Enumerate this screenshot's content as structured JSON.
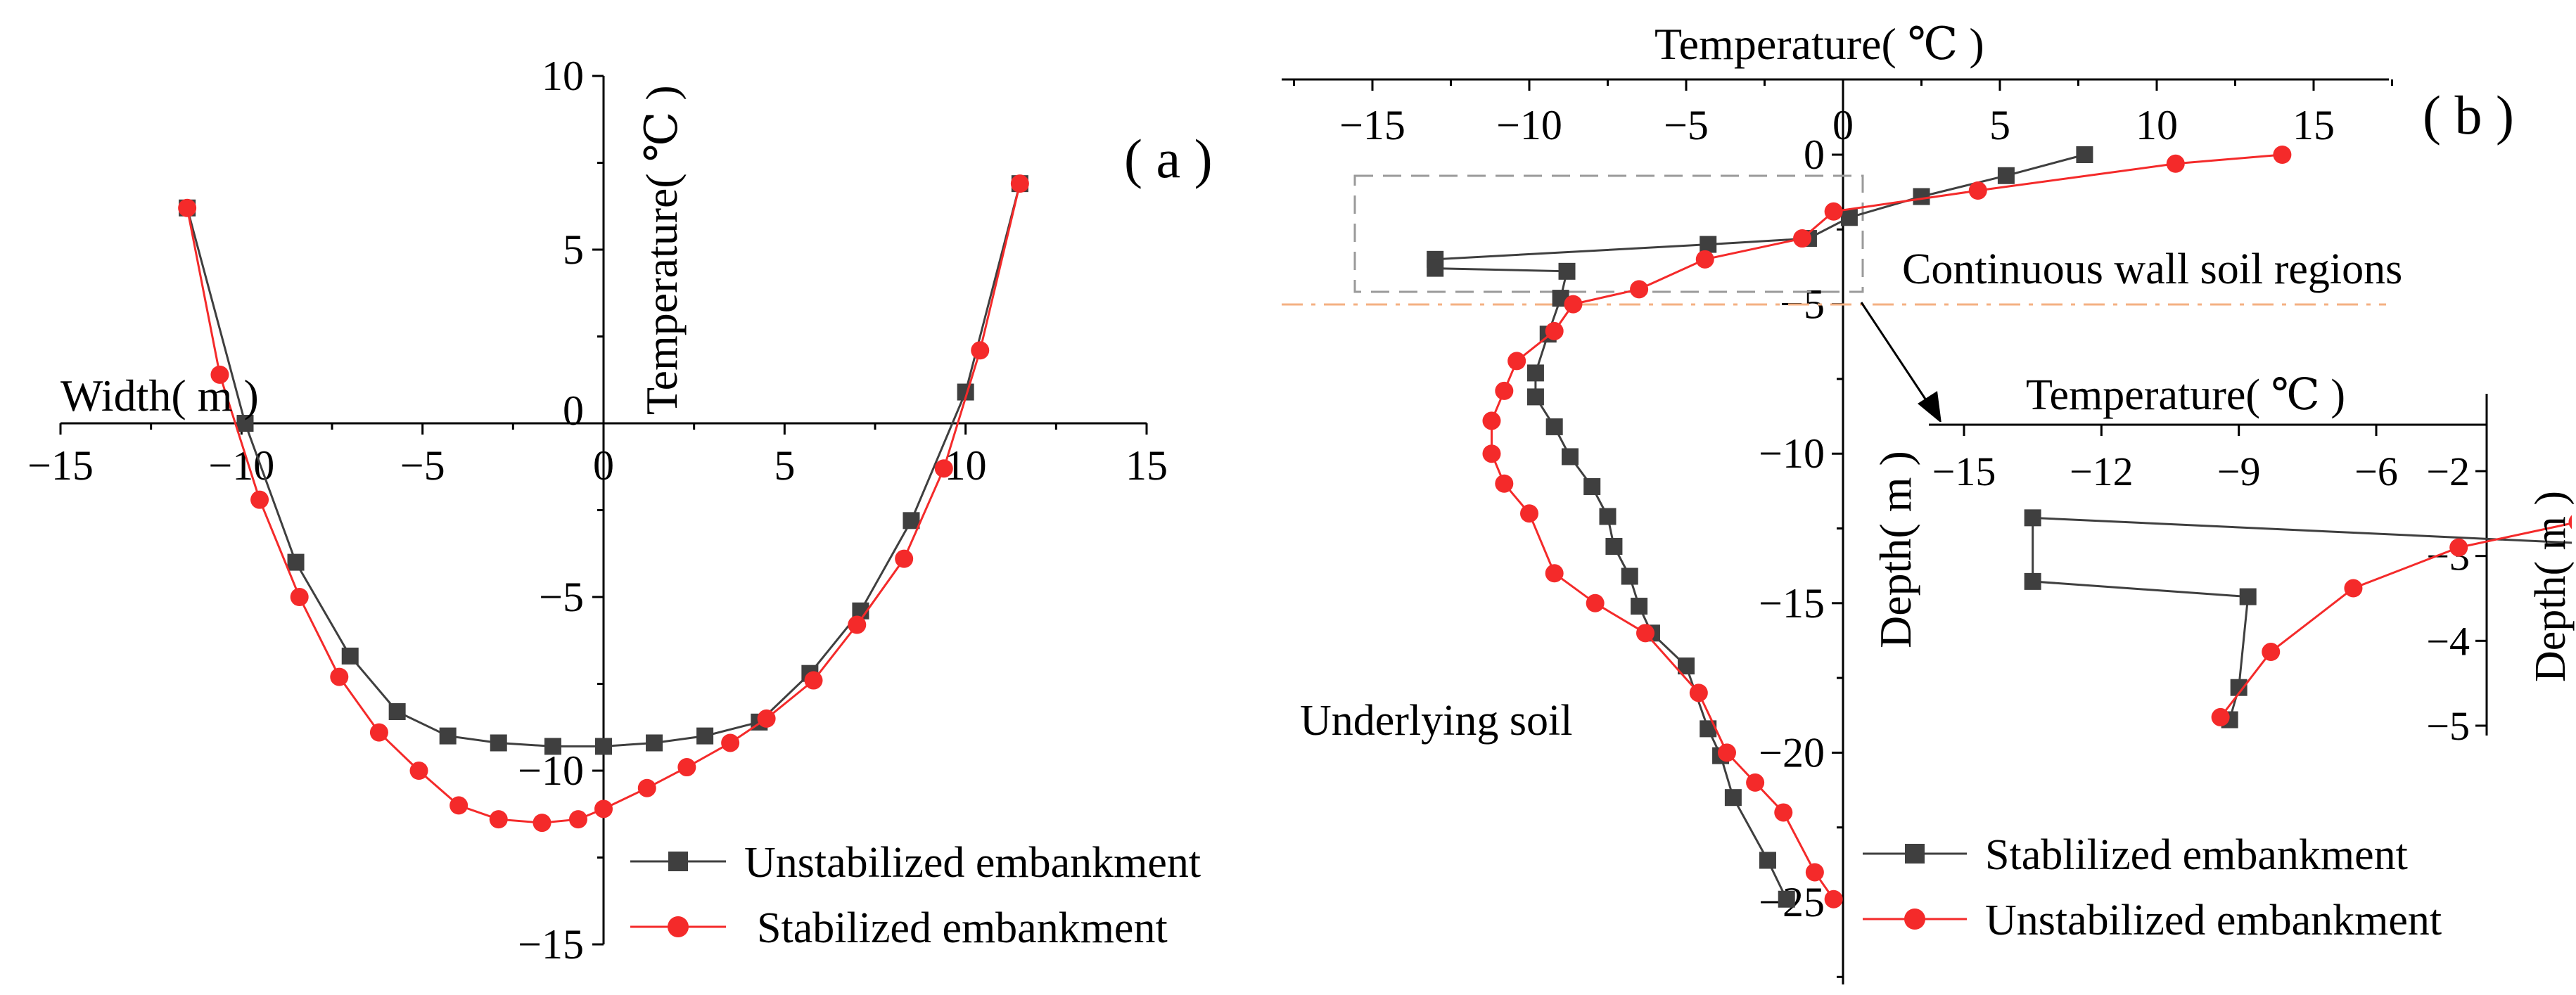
{
  "colors": {
    "gray_series": "#3f3f3f",
    "red_series": "#f42a2a",
    "dashed_box": "#9a9a9a",
    "boundary_line": "#f4b183"
  },
  "chart_data": [
    {
      "type": "line",
      "panel_label": "( a )",
      "xlabel": "Width( m )",
      "ylabel": "Temperature( ℃ )",
      "xlim": [
        -15,
        15
      ],
      "ylim": [
        -15,
        10
      ],
      "xticks": [
        -15,
        -10,
        -5,
        0,
        5,
        10,
        15
      ],
      "yticks": [
        -15,
        -10,
        -5,
        0,
        5,
        10
      ],
      "xtick_labels": [
        "−15",
        "−10",
        "−5",
        "0",
        "5",
        "10",
        "15"
      ],
      "ytick_labels": [
        "−15",
        "−10",
        "−5",
        "0",
        "5",
        "10"
      ],
      "legend": "bottom-right",
      "series": [
        {
          "name": "Unstabilized embankment",
          "color": "#3f3f3f",
          "marker": "square",
          "x": [
            -11.5,
            -9.9,
            -8.5,
            -7.0,
            -5.7,
            -4.3,
            -2.9,
            -1.4,
            0.0,
            1.4,
            2.8,
            4.3,
            5.7,
            7.1,
            8.5,
            10.0,
            11.5
          ],
          "y": [
            6.2,
            0.0,
            -4.0,
            -6.7,
            -8.3,
            -9.0,
            -9.2,
            -9.3,
            -9.3,
            -9.2,
            -9.0,
            -8.6,
            -7.2,
            -5.4,
            -2.8,
            0.9,
            6.9
          ]
        },
        {
          "name": "Stabilized embankment",
          "color": "#f42a2a",
          "marker": "circle",
          "x": [
            -11.5,
            -10.6,
            -9.5,
            -8.4,
            -7.3,
            -6.2,
            -5.1,
            -4.0,
            -2.9,
            -1.7,
            -0.7,
            0.0,
            1.2,
            2.3,
            3.5,
            4.5,
            5.8,
            7.0,
            8.3,
            9.4,
            10.4,
            11.5
          ],
          "y": [
            6.2,
            1.4,
            -2.2,
            -5.0,
            -7.3,
            -8.9,
            -10.0,
            -11.0,
            -11.4,
            -11.5,
            -11.4,
            -11.1,
            -10.5,
            -9.9,
            -9.2,
            -8.5,
            -7.4,
            -5.8,
            -3.9,
            -1.3,
            2.1,
            6.9
          ]
        }
      ]
    },
    {
      "type": "line",
      "panel_label": "( b )",
      "xlabel": "Temperature( ℃ )",
      "ylabel": "Depth( m )",
      "xlim": [
        -18,
        18
      ],
      "ylim": [
        0,
        27
      ],
      "xticks": [
        -15,
        -10,
        -5,
        0,
        5,
        10,
        15
      ],
      "yticks": [
        0,
        5,
        10,
        15,
        20,
        25
      ],
      "xtick_labels": [
        "−15",
        "−10",
        "−5",
        "0",
        "5",
        "10",
        "15"
      ],
      "ytick_labels": [
        "0",
        "−5",
        "−10",
        "−15",
        "−20",
        "−25"
      ],
      "legend": "bottom-right",
      "annotations": [
        "Continuous wall soil regions",
        "Underlying soil"
      ],
      "series": [
        {
          "name": "Stablilized embankment",
          "color": "#3f3f3f",
          "marker": "square",
          "x": [
            7.7,
            5.2,
            2.5,
            0.2,
            -1.1,
            -4.3,
            -13.0,
            -13.0,
            -8.8,
            -9.0,
            -9.4,
            -9.8,
            -9.8,
            -9.2,
            -8.7,
            -8.0,
            -7.5,
            -7.3,
            -6.8,
            -6.5,
            -6.1,
            -5.0,
            -4.3,
            -3.9,
            -3.5,
            -2.4,
            -1.8
          ],
          "y": [
            0.0,
            0.7,
            1.4,
            2.1,
            2.8,
            3.0,
            3.5,
            3.8,
            3.9,
            4.8,
            6.0,
            7.3,
            8.1,
            9.1,
            10.1,
            11.1,
            12.1,
            13.1,
            14.1,
            15.1,
            16.0,
            17.1,
            19.2,
            20.1,
            21.5,
            23.6,
            24.9
          ]
        },
        {
          "name": "Unstabilized embankment",
          "color": "#f42a2a",
          "marker": "circle",
          "x": [
            14.0,
            10.6,
            4.3,
            -0.3,
            -1.3,
            -4.4,
            -6.5,
            -8.6,
            -9.2,
            -10.4,
            -10.8,
            -11.2,
            -11.2,
            -10.8,
            -10.0,
            -9.2,
            -7.9,
            -6.3,
            -4.6,
            -3.7,
            -2.8,
            -1.9,
            -0.9,
            -0.3
          ],
          "y": [
            0.0,
            0.3,
            1.2,
            1.9,
            2.8,
            3.5,
            4.5,
            5.0,
            5.9,
            6.9,
            7.9,
            8.9,
            10.0,
            11.0,
            12.0,
            14.0,
            15.0,
            16.0,
            18.0,
            20.0,
            21.0,
            22.0,
            24.0,
            24.9
          ]
        }
      ]
    },
    {
      "type": "line",
      "panel_label": "",
      "xlabel": "Temperature( ℃ )",
      "ylabel": "Depth( m )",
      "xlim": [
        -17.5,
        0
      ],
      "ylim": [
        1.6,
        5.2
      ],
      "xticks": [
        -15,
        -12,
        -9,
        -6
      ],
      "yticks": [
        2,
        3,
        4,
        5
      ],
      "xtick_labels": [
        "−15",
        "−12",
        "−9",
        "−6"
      ],
      "ytick_labels": [
        "−2",
        "−3",
        "−4",
        "−5"
      ],
      "series": [
        {
          "name": "Stablilized embankment",
          "color": "#3f3f3f",
          "marker": "square",
          "x": [
            -1.5,
            -13.5,
            -13.5,
            -8.8,
            -9.0,
            -9.2
          ],
          "y": [
            2.85,
            2.55,
            3.3,
            3.48,
            4.55,
            4.93
          ]
        },
        {
          "name": "Unstabilized embankment",
          "color": "#f42a2a",
          "marker": "circle",
          "x": [
            0.5,
            -1.6,
            -4.2,
            -6.5,
            -8.3,
            -9.4
          ],
          "y": [
            2.4,
            2.6,
            2.9,
            3.38,
            4.13,
            4.9
          ]
        }
      ]
    }
  ]
}
